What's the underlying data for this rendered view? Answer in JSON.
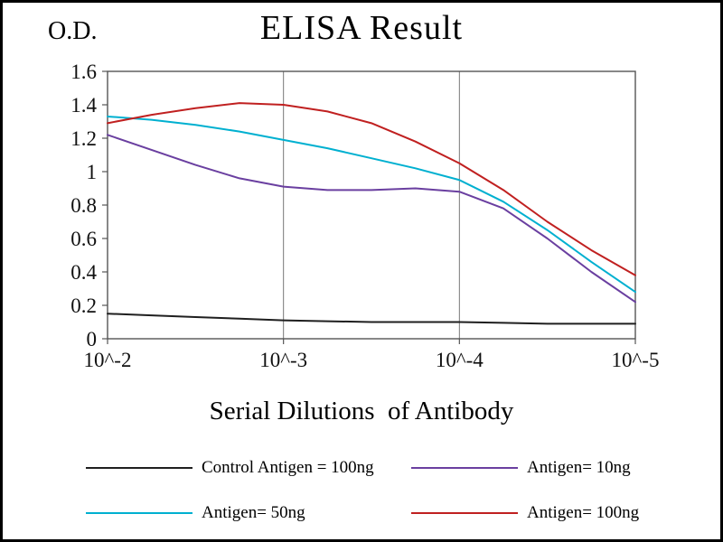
{
  "frame": {
    "background": "#ffffff",
    "border_color": "#000000"
  },
  "chart_data": {
    "type": "line",
    "title": "ELISA Result",
    "ylabel": "O.D.",
    "xlabel": "Serial Dilutions  of Antibody",
    "x_scale": "log10 dilution exponent",
    "xlim": [
      -2,
      -5
    ],
    "ylim": [
      0,
      1.6
    ],
    "grid": "vertical-only",
    "grid_color": "#777777",
    "axis_color": "#555555",
    "x": [
      -2,
      -2.25,
      -2.5,
      -2.75,
      -3,
      -3.25,
      -3.5,
      -3.75,
      -4,
      -4.25,
      -4.5,
      -4.75,
      -5
    ],
    "x_ticks": [
      {
        "value": -2,
        "label": "10^-2"
      },
      {
        "value": -3,
        "label": "10^-3"
      },
      {
        "value": -4,
        "label": "10^-4"
      },
      {
        "value": -5,
        "label": "10^-5"
      }
    ],
    "y_ticks": [
      {
        "value": 0,
        "label": "0"
      },
      {
        "value": 0.2,
        "label": "0.2"
      },
      {
        "value": 0.4,
        "label": "0.4"
      },
      {
        "value": 0.6,
        "label": "0.6"
      },
      {
        "value": 0.8,
        "label": "0.8"
      },
      {
        "value": 1,
        "label": "1"
      },
      {
        "value": 1.2,
        "label": "1.2"
      },
      {
        "value": 1.4,
        "label": "1.4"
      },
      {
        "value": 1.6,
        "label": "1.6"
      }
    ],
    "series": [
      {
        "name": "Control Antigen = 100ng",
        "color": "#1f1f1f",
        "values": [
          0.15,
          0.14,
          0.13,
          0.12,
          0.11,
          0.105,
          0.1,
          0.1,
          0.1,
          0.095,
          0.09,
          0.09,
          0.09
        ]
      },
      {
        "name": "Antigen= 10ng",
        "color": "#6a3fa0",
        "values": [
          1.22,
          1.13,
          1.04,
          0.96,
          0.91,
          0.89,
          0.89,
          0.9,
          0.88,
          0.78,
          0.6,
          0.4,
          0.22
        ]
      },
      {
        "name": "Antigen= 50ng",
        "color": "#00b0d0",
        "values": [
          1.33,
          1.31,
          1.28,
          1.24,
          1.19,
          1.14,
          1.08,
          1.02,
          0.95,
          0.82,
          0.65,
          0.46,
          0.28
        ]
      },
      {
        "name": "Antigen= 100ng",
        "color": "#c02020",
        "values": [
          1.29,
          1.34,
          1.38,
          1.41,
          1.4,
          1.36,
          1.29,
          1.18,
          1.05,
          0.89,
          0.7,
          0.53,
          0.38
        ]
      }
    ]
  },
  "legend": {
    "items": [
      {
        "label": "Control Antigen = 100ng",
        "color": "#1f1f1f"
      },
      {
        "label": "Antigen= 10ng",
        "color": "#6a3fa0"
      },
      {
        "label": "Antigen= 50ng",
        "color": "#00b0d0"
      },
      {
        "label": "Antigen= 100ng",
        "color": "#c02020"
      }
    ]
  }
}
